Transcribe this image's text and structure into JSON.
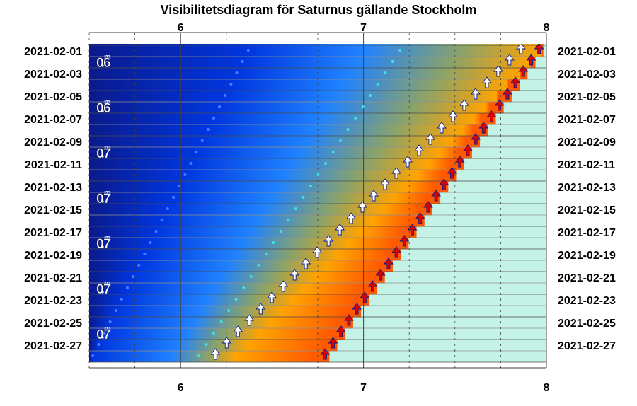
{
  "chart_data": {
    "type": "heatmap",
    "title": "Visibilitetsdiagram för Saturnus gällande Stockholm",
    "x_ticks": [
      "6",
      "7",
      "8"
    ],
    "xlim": [
      5.5,
      8.0
    ],
    "date_labels": [
      "2021-02-01",
      "2021-02-03",
      "2021-02-05",
      "2021-02-07",
      "2021-02-09",
      "2021-02-11",
      "2021-02-13",
      "2021-02-15",
      "2021-02-17",
      "2021-02-19",
      "2021-02-21",
      "2021-02-23",
      "2021-02-25",
      "2021-02-27"
    ],
    "magnitudes": [
      "0.6",
      "0.6",
      "0.7",
      "0.7",
      "0.7",
      "0.7",
      "0.7"
    ],
    "colors": {
      "night": "#0a1a8c",
      "deep_blue": "#0036e0",
      "blue": "#1f82ff",
      "dusk": "#8aa36a",
      "orange": "#ffa300",
      "red_orange": "#ff5a00",
      "day": "#c4f2e6",
      "rise_arrow_red": "#e00000",
      "rise_arrow_white": "#ffffff",
      "dot_blue": "#4a7dff",
      "dot_cyan": "#3fe0e6"
    },
    "series": [
      {
        "marker": "red-arrow",
        "start_date": "2021-02-01",
        "x_start": 7.96,
        "x_end": 6.79
      },
      {
        "marker": "white-arrow",
        "start_date": "2021-02-01",
        "x_start": 7.86,
        "x_end": 6.19
      },
      {
        "marker": "cyan-dot",
        "start_date": "2021-02-01",
        "x_start": 7.2,
        "x_end": 6.1
      },
      {
        "marker": "blue-dot",
        "start_date": "2021-02-01",
        "x_start": 6.37,
        "x_end": 5.52
      }
    ]
  }
}
